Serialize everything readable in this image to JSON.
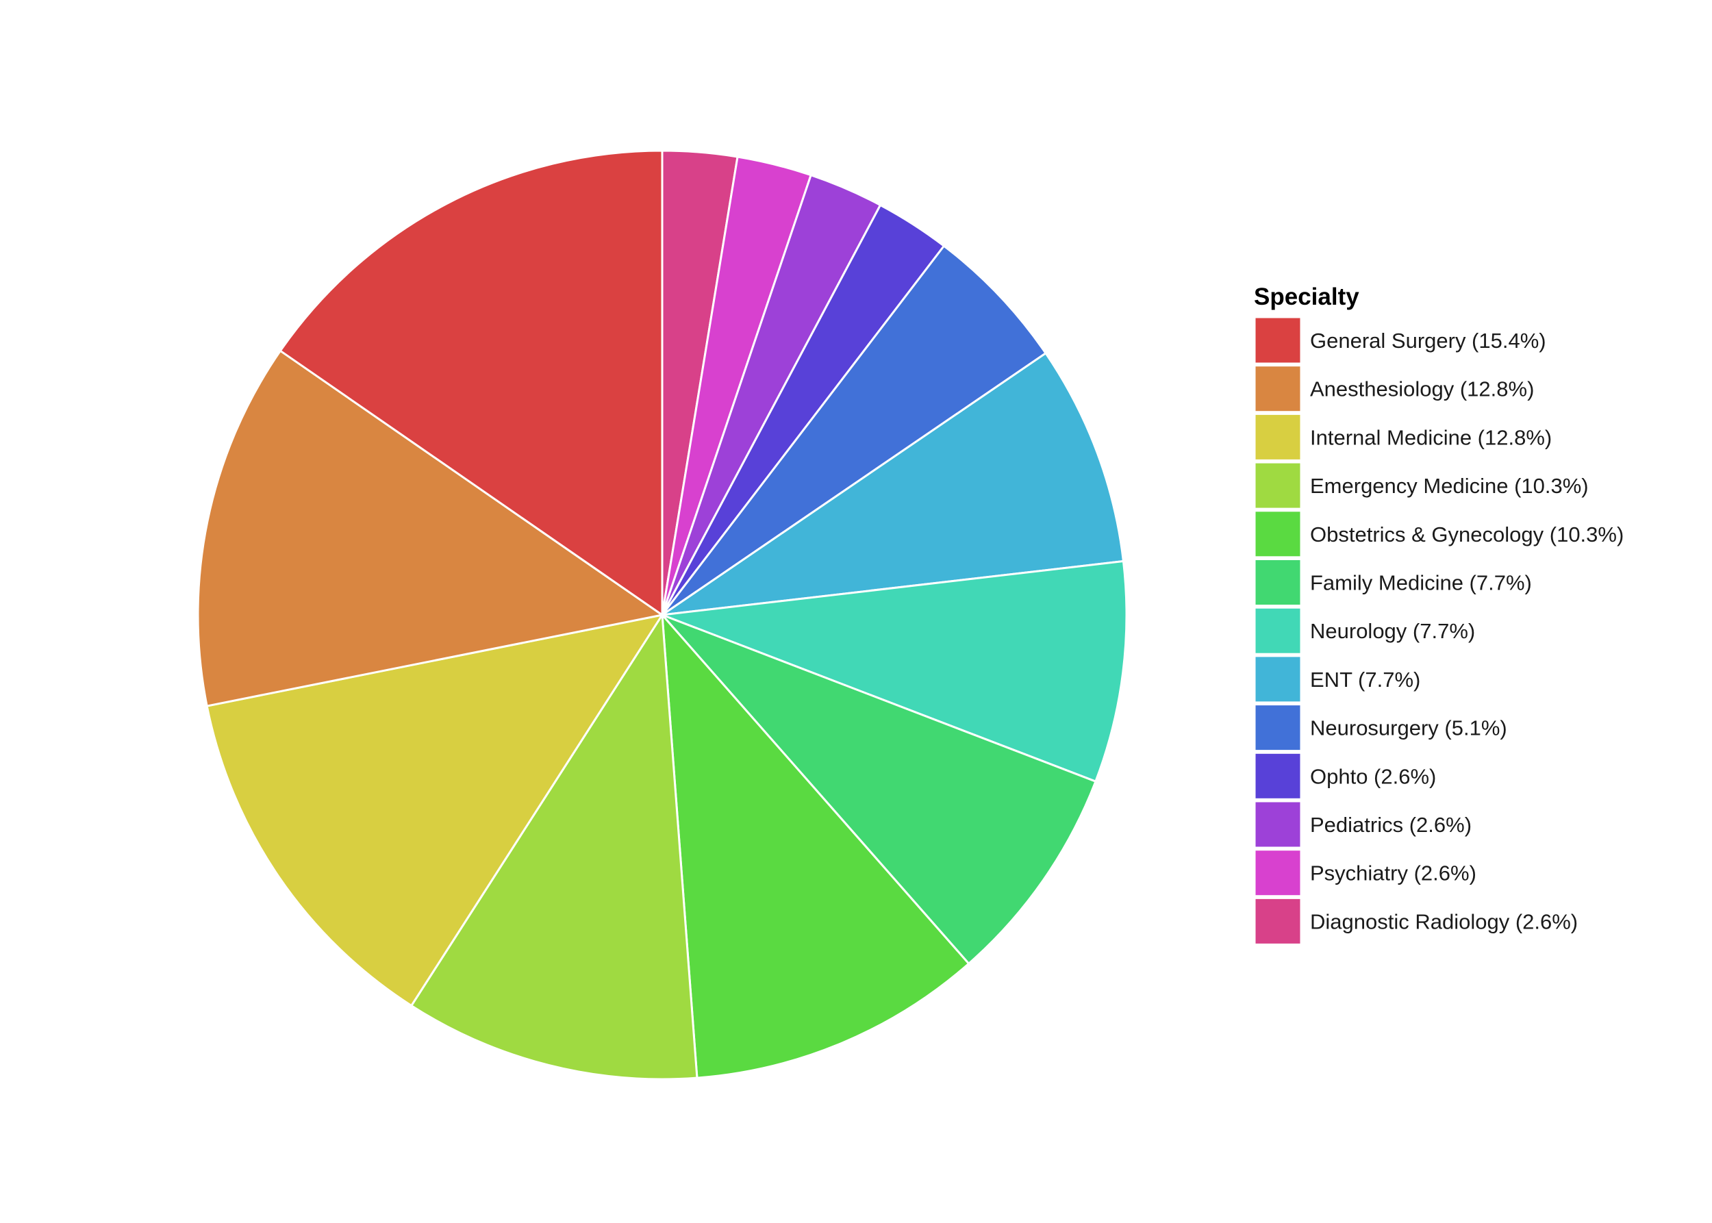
{
  "chart_data": {
    "type": "pie",
    "legend_title": "Specialty",
    "legend_position": "right",
    "start_angle": "12 o'clock",
    "direction": "clockwise",
    "slices": [
      {
        "label": "General Surgery (15.4%)",
        "value": 15.4,
        "color": "#DA4141"
      },
      {
        "label": "Anesthesiology (12.8%)",
        "value": 12.8,
        "color": "#D98641"
      },
      {
        "label": "Internal Medicine (12.8%)",
        "value": 12.8,
        "color": "#D8CF41"
      },
      {
        "label": "Emergency Medicine (10.3%)",
        "value": 10.3,
        "color": "#9FDA41"
      },
      {
        "label": "Obstetrics & Gynecology (10.3%)",
        "value": 10.3,
        "color": "#5ADA41"
      },
      {
        "label": "Family Medicine (7.7%)",
        "value": 7.7,
        "color": "#41D871"
      },
      {
        "label": "Neurology (7.7%)",
        "value": 7.7,
        "color": "#41D8B6"
      },
      {
        "label": "ENT (7.7%)",
        "value": 7.7,
        "color": "#41B5D8"
      },
      {
        "label": "Neurosurgery (5.1%)",
        "value": 5.1,
        "color": "#4171D8"
      },
      {
        "label": "Ophto (2.6%)",
        "value": 2.6,
        "color": "#5841D8"
      },
      {
        "label": "Pediatrics (2.6%)",
        "value": 2.6,
        "color": "#9D41D8"
      },
      {
        "label": "Psychiatry (2.6%)",
        "value": 2.6,
        "color": "#D841CF"
      },
      {
        "label": "Diagnostic Radiology (2.6%)",
        "value": 2.6,
        "color": "#D84189"
      }
    ]
  }
}
